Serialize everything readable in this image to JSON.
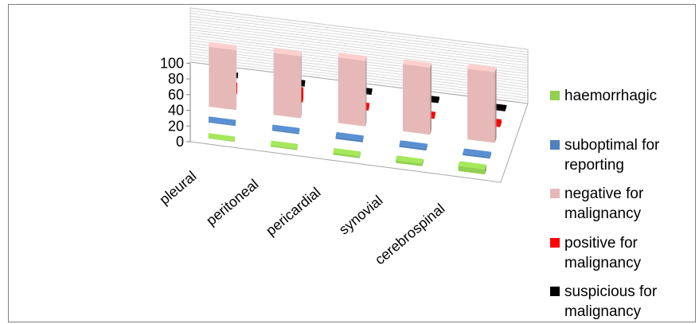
{
  "chart_data": {
    "type": "bar",
    "title": "",
    "xlabel": "",
    "ylabel": "",
    "ylim": [
      0,
      100
    ],
    "yticks": [
      "0",
      "20",
      "40",
      "60",
      "80",
      "100"
    ],
    "categories": [
      "pleural",
      "peritoneal",
      "pericardial",
      "synovial",
      "cerebrospinal"
    ],
    "series": [
      {
        "name": "haemorrhagic",
        "color": "#92d050",
        "values": [
          1,
          2,
          3,
          4,
          8
        ]
      },
      {
        "name": "suboptimal for reporting",
        "color": "#4f81bd",
        "values": [
          2,
          2,
          3,
          3,
          3
        ]
      },
      {
        "name": "negative for malignancy",
        "color": "#e6b9b8",
        "values": [
          85,
          88,
          93,
          95,
          100
        ]
      },
      {
        "name": "positive for malignancy",
        "color": "#ff0000",
        "values": [
          9,
          14,
          4,
          3,
          4
        ]
      },
      {
        "name": "suspicious for malignancy",
        "color": "#000000",
        "values": [
          1,
          2,
          2,
          2,
          2
        ]
      }
    ],
    "legend_position": "right",
    "grid": true,
    "projection": "3d-perspective"
  }
}
